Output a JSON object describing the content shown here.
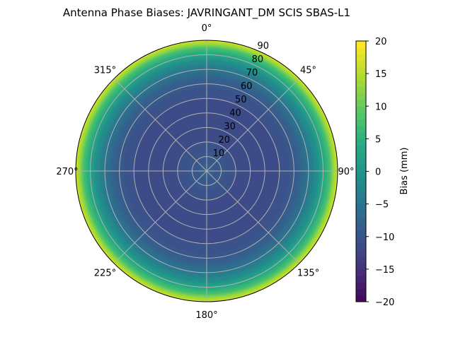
{
  "chart_data": {
    "type": "heatmap",
    "projection": "polar",
    "title": "Antenna Phase Biases: JAVRINGANT_DM   SCIS SBAS-L1",
    "theta_tick_labels": [
      "0°",
      "45°",
      "90°",
      "135°",
      "180°",
      "225°",
      "270°",
      "315°"
    ],
    "theta_direction": "clockwise",
    "theta_zero": "north",
    "radial_ticks": [
      10,
      20,
      30,
      40,
      50,
      60,
      70,
      80,
      90
    ],
    "rlim": [
      0,
      90
    ],
    "grid": true,
    "colormap": "viridis",
    "colorbar": {
      "label": "Bias (mm)",
      "range": [
        -20,
        20
      ],
      "ticks": [
        20,
        15,
        10,
        5,
        0,
        -5,
        -10,
        -15,
        -20
      ],
      "tick_labels": [
        "20",
        "15",
        "10",
        "5",
        "0",
        "−5",
        "−10",
        "−15",
        "−20"
      ]
    },
    "radial_profile": {
      "zenith_deg": [
        0,
        5,
        10,
        15,
        20,
        25,
        30,
        35,
        40,
        45,
        50,
        55,
        60,
        65,
        70,
        75,
        80,
        85,
        90
      ],
      "bias_mm": [
        -8,
        -8.5,
        -9,
        -10,
        -10.5,
        -11,
        -11.5,
        -11.5,
        -11.5,
        -11,
        -10.5,
        -10,
        -9,
        -7,
        -4.5,
        -1,
        3,
        9,
        18
      ]
    }
  }
}
